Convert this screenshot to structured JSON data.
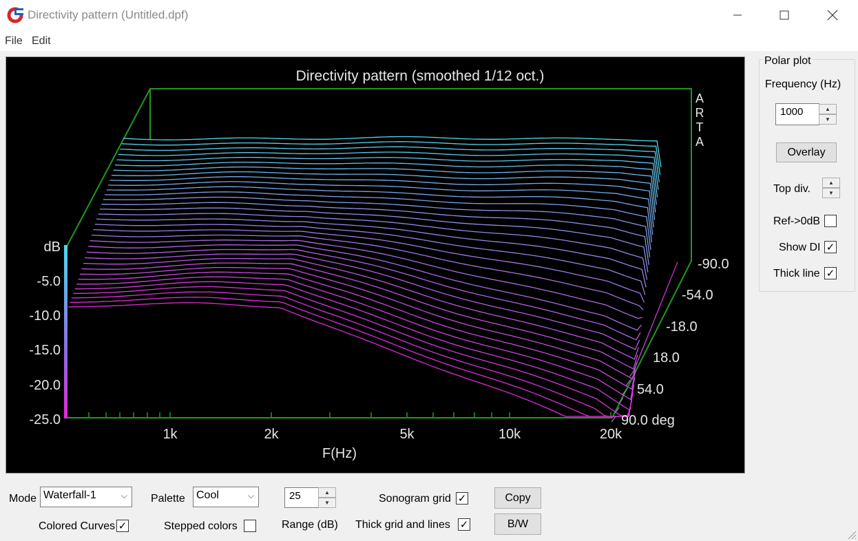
{
  "window": {
    "title": "Directivity pattern (Untitled.dpf)"
  },
  "menu": [
    "File",
    "Edit"
  ],
  "plot": {
    "title": "Directivity pattern (smoothed 1/12 oct.)",
    "watermark": [
      "A",
      "R",
      "T",
      "A"
    ],
    "y_unit": "dB",
    "y_ticks": [
      "-5.0",
      "-10.0",
      "-15.0",
      "-20.0",
      "-25.0"
    ],
    "x_ticks": [
      "1k",
      "2k",
      "5k",
      "10k",
      "20k"
    ],
    "x_label": "F(Hz)",
    "z_ticks": [
      "-90.0",
      "-54.0",
      "-18.0",
      "18.0",
      "54.0",
      "90.0 deg"
    ],
    "colors": {
      "background": "#000000",
      "frame": "#1f9a1f",
      "cyan": "#4fd9ee",
      "magenta": "#e02ad6"
    }
  },
  "polar": {
    "group_label": "Polar plot",
    "freq_label": "Frequency (Hz)",
    "freq_value": "1000",
    "overlay_label": "Overlay",
    "top_div_label": "Top div.",
    "ref_label": "Ref->0dB",
    "ref_checked": false,
    "show_di_label": "Show DI",
    "show_di_checked": true,
    "thick_line_label": "Thick line",
    "thick_line_checked": true
  },
  "bottom": {
    "mode_label": "Mode",
    "mode_value": "Waterfall-1",
    "palette_label": "Palette",
    "palette_value": "Cool",
    "range_value": "25",
    "range_label": "Range (dB)",
    "sonogram_grid_label": "Sonogram grid",
    "sonogram_grid_checked": true,
    "copy_label": "Copy",
    "colored_curves_label": "Colored Curves",
    "colored_curves_checked": true,
    "stepped_colors_label": "Stepped colors",
    "stepped_colors_checked": false,
    "thick_grid_label": "Thick grid and  lines",
    "thick_grid_checked": true,
    "bw_label": "B/W"
  }
}
